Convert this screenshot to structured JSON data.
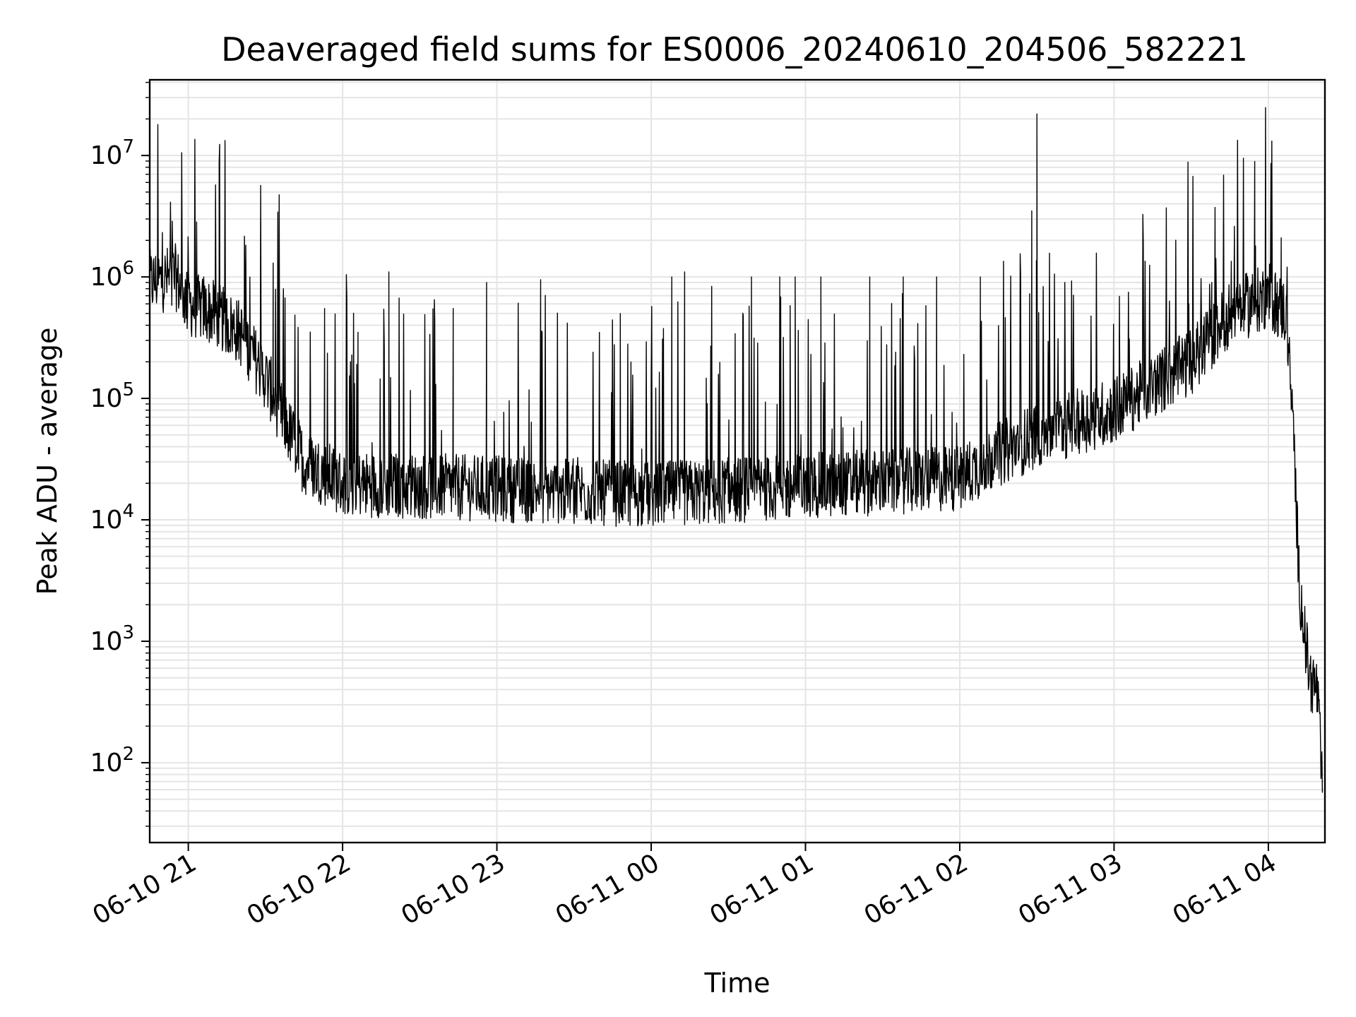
{
  "chart_data": {
    "type": "line",
    "title": "Deaveraged field sums for ES0006_20240610_204506_582221",
    "xlabel": "Time",
    "ylabel": "Peak ADU - average",
    "yscale": "log",
    "ylim": [
      22,
      42000000
    ],
    "xlim": [
      "2024-06-10 20:45",
      "2024-06-11 04:22"
    ],
    "grid": true,
    "legend": "none",
    "line_color": "#000000",
    "grid_color": "#e5e5e5",
    "x_ticks": [
      {
        "t": "2024-06-10 21:00",
        "label": "06-10 21"
      },
      {
        "t": "2024-06-10 22:00",
        "label": "06-10 22"
      },
      {
        "t": "2024-06-10 23:00",
        "label": "06-10 23"
      },
      {
        "t": "2024-06-11 00:00",
        "label": "06-11 00"
      },
      {
        "t": "2024-06-11 01:00",
        "label": "06-11 01"
      },
      {
        "t": "2024-06-11 02:00",
        "label": "06-11 02"
      },
      {
        "t": "2024-06-11 03:00",
        "label": "06-11 03"
      },
      {
        "t": "2024-06-11 04:00",
        "label": "06-11 04"
      }
    ],
    "y_ticks": [
      {
        "value": 100,
        "base": "10",
        "exp": "2"
      },
      {
        "value": 1000,
        "base": "10",
        "exp": "3"
      },
      {
        "value": 10000,
        "base": "10",
        "exp": "4"
      },
      {
        "value": 100000,
        "base": "10",
        "exp": "5"
      },
      {
        "value": 1000000,
        "base": "10",
        "exp": "6"
      },
      {
        "value": 10000000,
        "base": "10",
        "exp": "7"
      }
    ],
    "series": [
      {
        "baseline": [
          [
            "2024-06-10 20:45",
            900000
          ],
          [
            "2024-06-10 20:55",
            1000000
          ],
          [
            "2024-06-10 21:00",
            600000
          ],
          [
            "2024-06-10 21:10",
            500000
          ],
          [
            "2024-06-10 21:20",
            350000
          ],
          [
            "2024-06-10 21:30",
            150000
          ],
          [
            "2024-06-10 21:38",
            60000
          ],
          [
            "2024-06-10 21:45",
            30000
          ],
          [
            "2024-06-10 22:00",
            20000
          ],
          [
            "2024-06-10 23:00",
            18000
          ],
          [
            "2024-06-11 00:00",
            16000
          ],
          [
            "2024-06-11 01:00",
            19000
          ],
          [
            "2024-06-11 02:00",
            22000
          ],
          [
            "2024-06-11 02:10",
            30000
          ],
          [
            "2024-06-11 02:30",
            50000
          ],
          [
            "2024-06-11 03:00",
            80000
          ],
          [
            "2024-06-11 03:30",
            200000
          ],
          [
            "2024-06-11 03:45",
            500000
          ],
          [
            "2024-06-11 04:00",
            700000
          ],
          [
            "2024-06-11 04:07",
            500000
          ],
          [
            "2024-06-11 04:10",
            40000
          ],
          [
            "2024-06-11 04:12",
            3000
          ],
          [
            "2024-06-11 04:16",
            500
          ],
          [
            "2024-06-11 04:19",
            400
          ],
          [
            "2024-06-11 04:21",
            60
          ]
        ],
        "peaks": [
          [
            "2024-06-10 21:06",
            1000000
          ],
          [
            "2024-06-10 21:12",
            1000000
          ],
          [
            "2024-06-10 21:22",
            900000
          ],
          [
            "2024-06-10 21:33",
            1300000
          ],
          [
            "2024-06-10 21:37",
            800000
          ],
          [
            "2024-06-10 21:53",
            550000
          ],
          [
            "2024-06-10 22:06",
            350000
          ],
          [
            "2024-06-10 22:18",
            1100000
          ],
          [
            "2024-06-10 22:43",
            550000
          ],
          [
            "2024-06-10 22:56",
            900000
          ],
          [
            "2024-06-10 23:17",
            950000
          ],
          [
            "2024-06-10 23:48",
            500000
          ],
          [
            "2024-06-11 00:08",
            1000000
          ],
          [
            "2024-06-11 00:13",
            1100000
          ],
          [
            "2024-06-11 00:39",
            1000000
          ],
          [
            "2024-06-11 00:50",
            1000000
          ],
          [
            "2024-06-11 00:56",
            1000000
          ],
          [
            "2024-06-11 01:06",
            1000000
          ],
          [
            "2024-06-11 01:25",
            1000000
          ],
          [
            "2024-06-11 01:38",
            1000000
          ],
          [
            "2024-06-11 01:51",
            1000000
          ],
          [
            "2024-06-11 02:08",
            1000000
          ],
          [
            "2024-06-11 02:28",
            3500000
          ],
          [
            "2024-06-11 02:30",
            22000000
          ],
          [
            "2024-06-11 03:38",
            900000
          ],
          [
            "2024-06-11 03:55",
            1800000
          ],
          [
            "2024-06-11 04:05",
            2100000
          ]
        ]
      }
    ]
  }
}
